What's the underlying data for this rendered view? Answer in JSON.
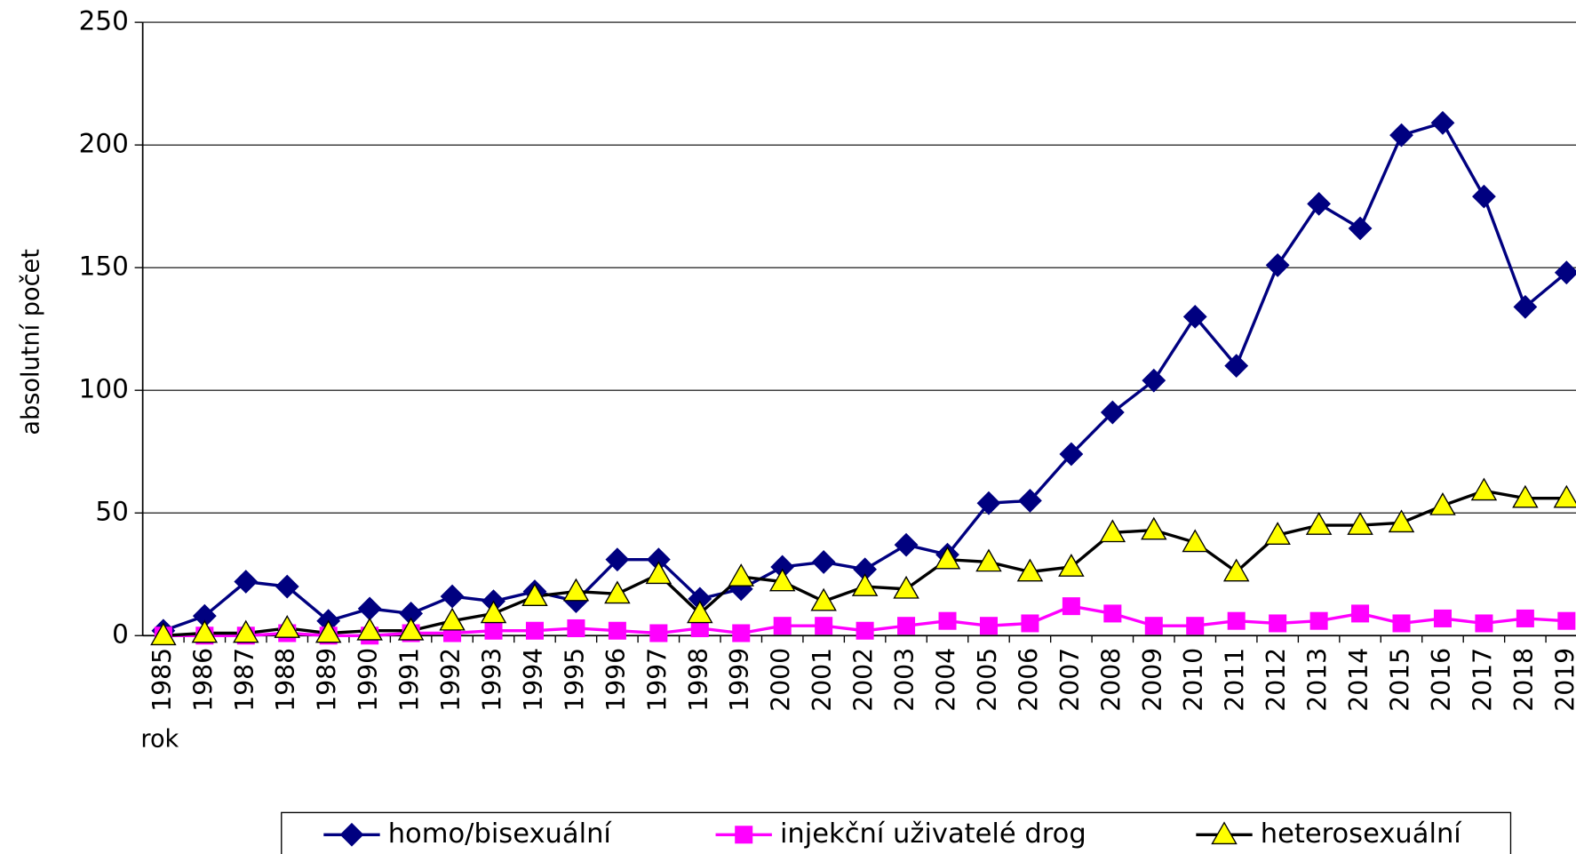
{
  "chart_data": {
    "type": "line",
    "xlabel": "rok",
    "ylabel": "absolutní počet",
    "categories": [
      "1985",
      "1986",
      "1987",
      "1988",
      "1989",
      "1990",
      "1991",
      "1992",
      "1993",
      "1994",
      "1995",
      "1996",
      "1997",
      "1998",
      "1999",
      "2000",
      "2001",
      "2002",
      "2003",
      "2004",
      "2005",
      "2006",
      "2007",
      "2008",
      "2009",
      "2010",
      "2011",
      "2012",
      "2013",
      "2014",
      "2015",
      "2016",
      "2017",
      "2018",
      "2019"
    ],
    "series": [
      {
        "name": "homo/bisexuální",
        "color": "#000080",
        "marker": "diamond",
        "marker_color": "#000080",
        "values": [
          2,
          8,
          22,
          20,
          6,
          11,
          9,
          16,
          14,
          18,
          14,
          31,
          31,
          15,
          19,
          28,
          30,
          27,
          37,
          33,
          54,
          55,
          74,
          91,
          104,
          130,
          110,
          151,
          176,
          166,
          204,
          209,
          179,
          134,
          148
        ]
      },
      {
        "name": "injekční uživatelé drog",
        "color": "#ff00ff",
        "marker": "square",
        "marker_color": "#ff00ff",
        "values": [
          0,
          0,
          0,
          1,
          0,
          0,
          1,
          1,
          2,
          2,
          3,
          2,
          1,
          3,
          1,
          4,
          4,
          2,
          4,
          6,
          4,
          5,
          12,
          9,
          4,
          4,
          6,
          5,
          6,
          9,
          5,
          7,
          5,
          7,
          6
        ]
      },
      {
        "name": "heterosexuální",
        "color": "#000000",
        "marker": "triangle",
        "marker_color": "#ffff00",
        "values": [
          0,
          1,
          1,
          3,
          1,
          2,
          2,
          6,
          9,
          16,
          18,
          17,
          25,
          9,
          24,
          22,
          14,
          20,
          19,
          31,
          30,
          26,
          28,
          42,
          43,
          38,
          26,
          41,
          45,
          45,
          46,
          53,
          59,
          56,
          56
        ]
      }
    ],
    "ylim": [
      0,
      250
    ],
    "yticks": [
      0,
      50,
      100,
      150,
      200,
      250
    ],
    "grid": true,
    "legend": "bottom"
  }
}
